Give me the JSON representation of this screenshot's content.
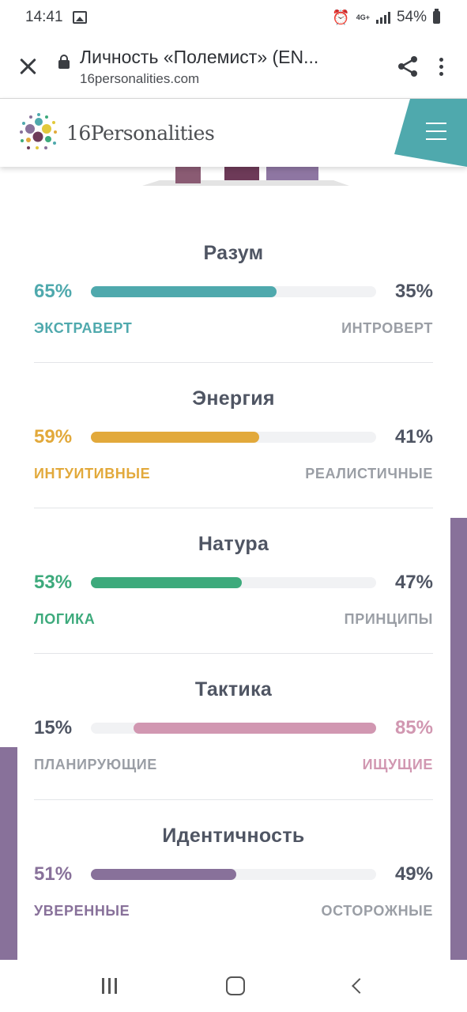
{
  "status_bar": {
    "time": "14:41",
    "network": "4G+",
    "battery": "54%"
  },
  "browser": {
    "page_title": "Личность «Полемист» (EN...",
    "url": "16personalities.com"
  },
  "site": {
    "logo_text": "16Personalities"
  },
  "colors": {
    "mind": "#4fa9ad",
    "energy": "#e2a93b",
    "nature": "#3daa7c",
    "tactics": "#d197b1",
    "identity": "#88719a",
    "header_tab": "#4fa9ad"
  },
  "traits": [
    {
      "title": "Разум",
      "left_pct": "65%",
      "right_pct": "35%",
      "left_label": "ЭКСТРАВЕРТ",
      "right_label": "ИНТРОВЕРТ",
      "dominant": "left",
      "value": 0.65
    },
    {
      "title": "Энергия",
      "left_pct": "59%",
      "right_pct": "41%",
      "left_label": "ИНТУИТИВНЫЕ",
      "right_label": "РЕАЛИСТИЧНЫЕ",
      "dominant": "left",
      "value": 0.59
    },
    {
      "title": "Натура",
      "left_pct": "53%",
      "right_pct": "47%",
      "left_label": "ЛОГИКА",
      "right_label": "ПРИНЦИПЫ",
      "dominant": "left",
      "value": 0.53
    },
    {
      "title": "Тактика",
      "left_pct": "15%",
      "right_pct": "85%",
      "left_label": "ПЛАНИРУЮЩИЕ",
      "right_label": "ИЩУЩИЕ",
      "dominant": "right",
      "value": 0.85
    },
    {
      "title": "Идентичность",
      "left_pct": "51%",
      "right_pct": "49%",
      "left_label": "УВЕРЕННЫЕ",
      "right_label": "ОСТОРОЖНЫЕ",
      "dominant": "left",
      "value": 0.51
    }
  ]
}
